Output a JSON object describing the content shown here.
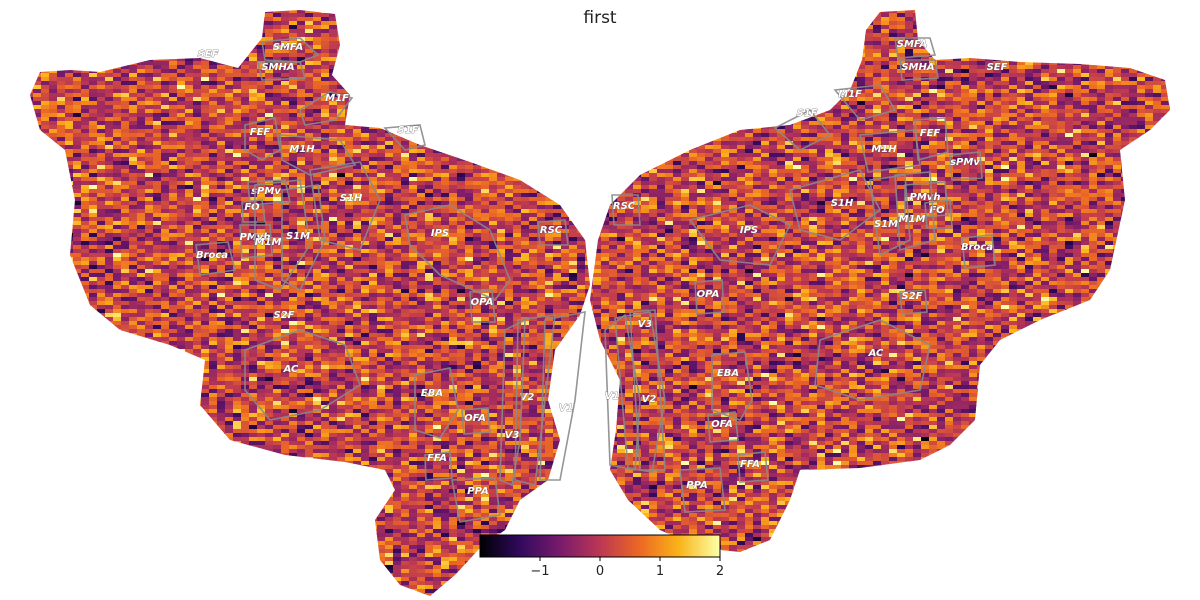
{
  "title": "first",
  "colormap": {
    "name": "inferno",
    "stops": [
      "#000004",
      "#320a5e",
      "#781b6c",
      "#bb3754",
      "#ec6824",
      "#fbb41a",
      "#fcffa4"
    ]
  },
  "colorbar": {
    "vmin": -2,
    "vmax": 2,
    "ticks": [
      {
        "value": -1,
        "label": "−1"
      },
      {
        "value": 0,
        "label": "0"
      },
      {
        "value": 1,
        "label": "1"
      },
      {
        "value": 2,
        "label": "2"
      }
    ]
  },
  "left_hemisphere_labels": [
    "SEF",
    "SMFA",
    "SMHA",
    "M1F",
    "FEF",
    "S1F",
    "M1H",
    "sPMv",
    "FO",
    "S1H",
    "PMvh",
    "M1M",
    "S1M",
    "Broca",
    "IPS",
    "RSC",
    "OPA",
    "S2F",
    "AC",
    "EBA",
    "V2",
    "V1",
    "OFA",
    "V3",
    "FFA",
    "PPA"
  ],
  "right_hemisphere_labels": [
    "SMFA",
    "SMHA",
    "SEF",
    "M1F",
    "S1F",
    "FEF",
    "M1H",
    "sPMv",
    "RSC",
    "PMvh",
    "S1H",
    "FO",
    "IPS",
    "S1M",
    "M1M",
    "Broca",
    "V3",
    "OPA",
    "S2F",
    "AC",
    "EBA",
    "V1",
    "V2",
    "OFA",
    "FFA",
    "PPA"
  ]
}
